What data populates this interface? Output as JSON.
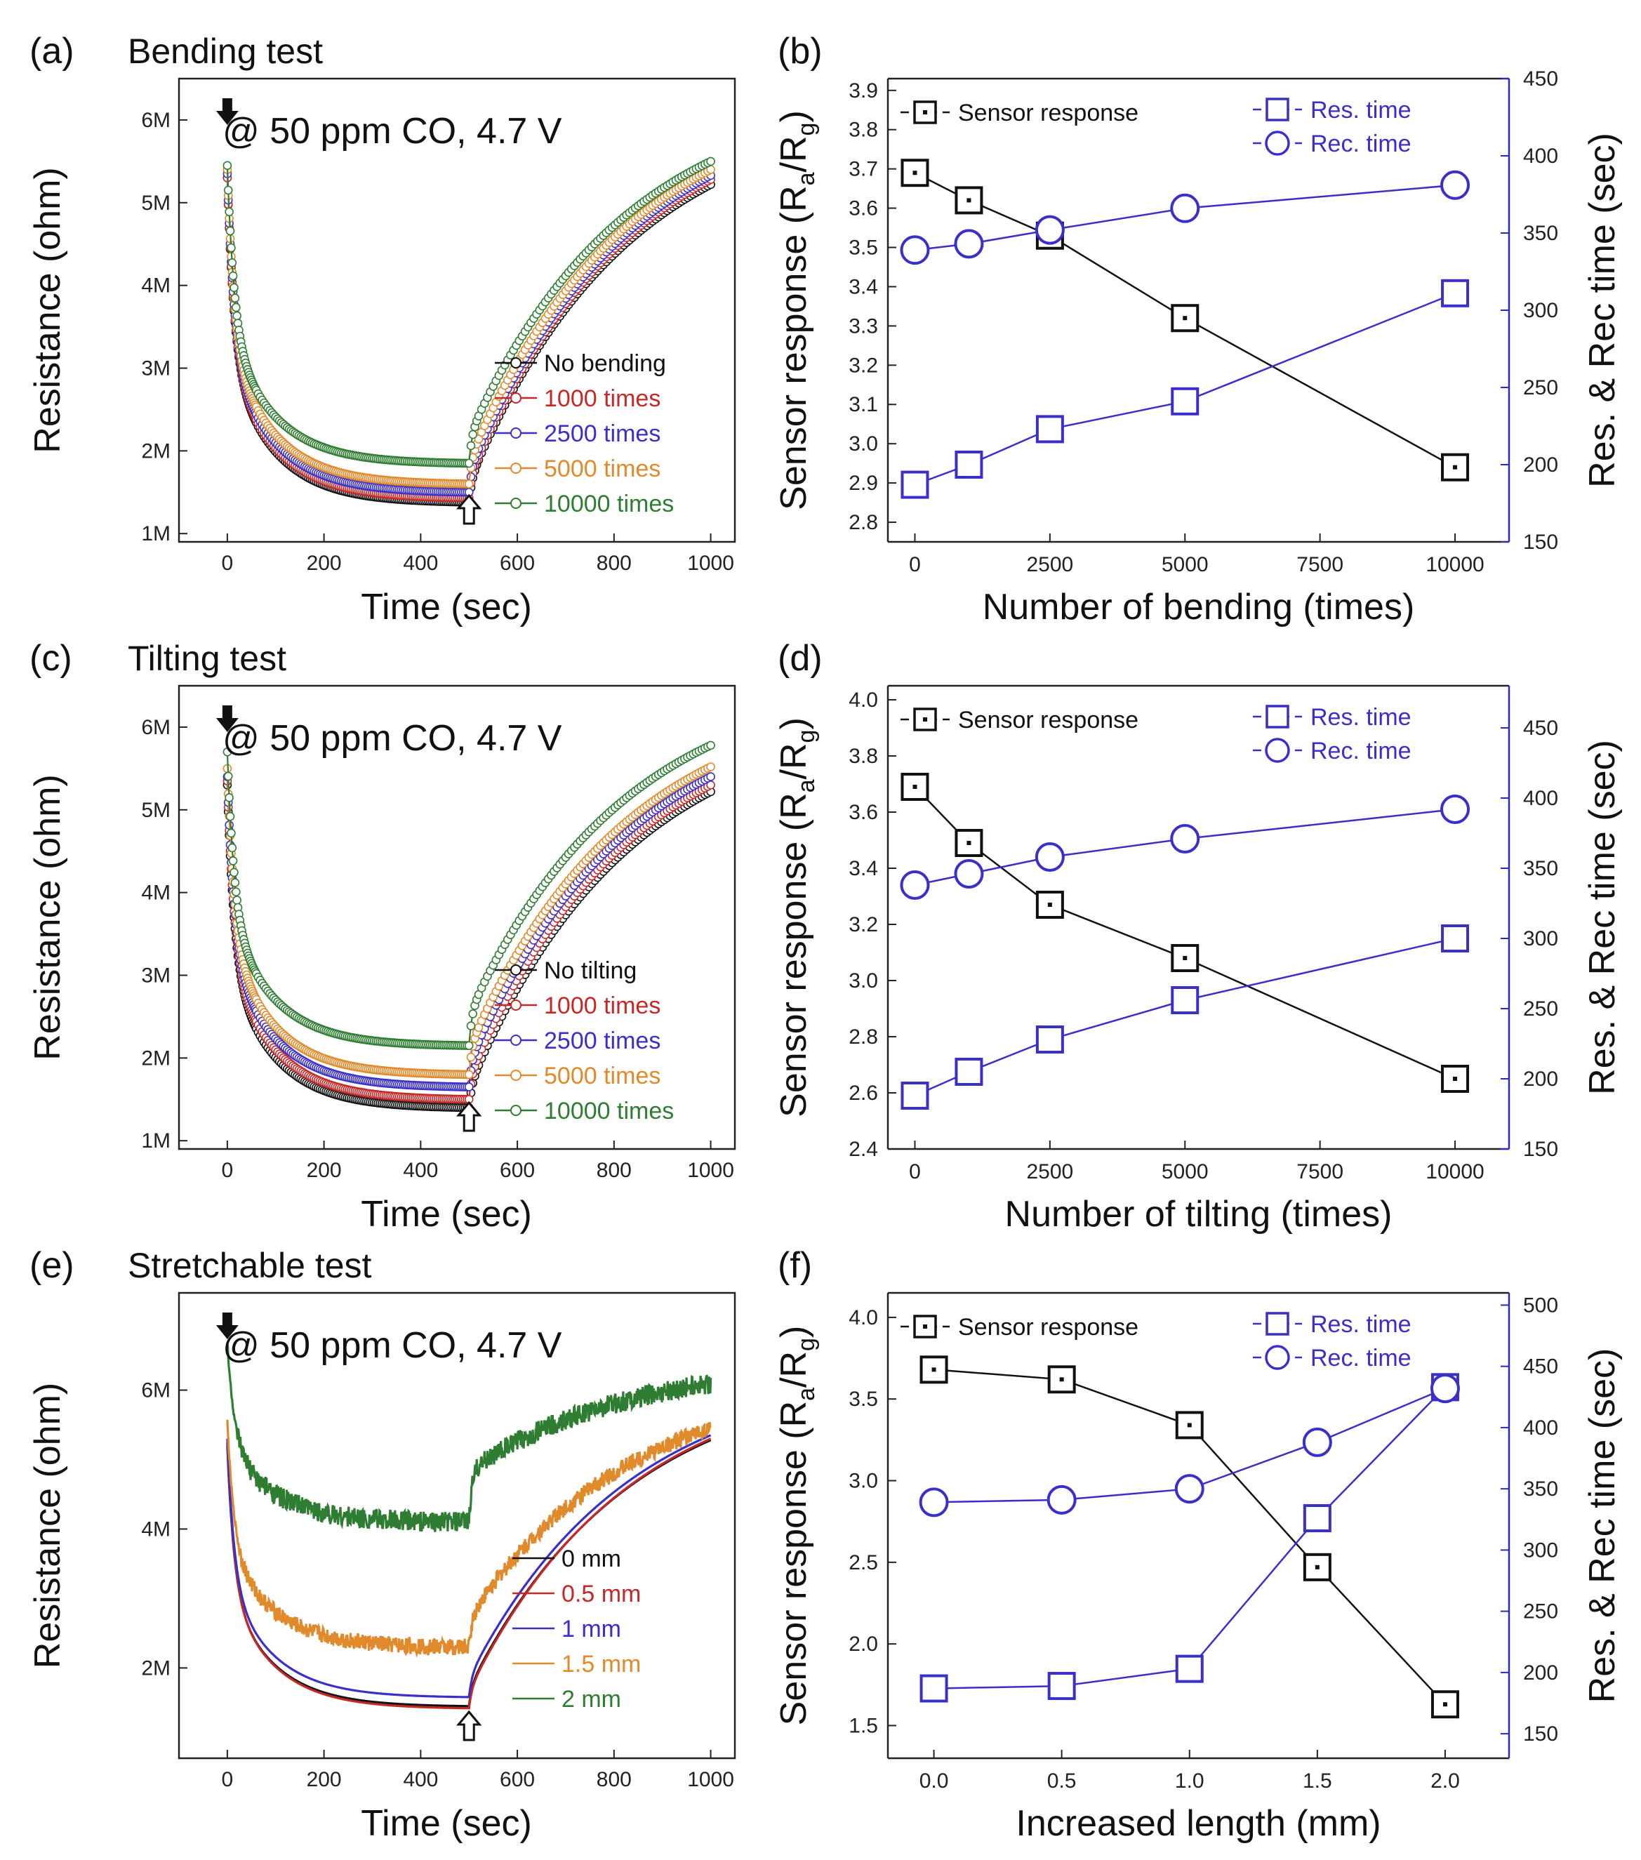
{
  "figure": {
    "colors": {
      "black": "#111111",
      "red": "#c62828",
      "blue": "#3a2fc9",
      "orange": "#e08a2c",
      "green": "#2e7d32",
      "axis_right": "#2f28c8"
    }
  },
  "chart_data": [
    {
      "id": "a",
      "type": "line",
      "letter": "(a)",
      "title": "Bending test",
      "annotation": "@ 50 ppm CO, 4.7 V",
      "xlabel": "Time (sec)",
      "ylabel": "Resistance (ohm)",
      "xlim": [
        -100,
        1050
      ],
      "ylim": [
        900000,
        6500000
      ],
      "xticks": [
        0,
        200,
        400,
        600,
        800,
        1000
      ],
      "yticks": [
        1000000,
        2000000,
        3000000,
        4000000,
        5000000,
        6000000
      ],
      "ytick_labels": [
        "1M",
        "2M",
        "3M",
        "4M",
        "5M",
        "6M"
      ],
      "marker": "circle",
      "gas_in_s": 0,
      "gas_out_s": 500,
      "series": [
        {
          "name": "No bending",
          "color": "#111111",
          "r0": 5300000,
          "r_min": 1380000,
          "r_end": 5220000
        },
        {
          "name": "1000 times",
          "color": "#c62828",
          "r0": 5300000,
          "r_min": 1430000,
          "r_end": 5280000
        },
        {
          "name": "2500 times",
          "color": "#3a2fc9",
          "r0": 5350000,
          "r_min": 1500000,
          "r_end": 5330000
        },
        {
          "name": "5000 times",
          "color": "#e08a2c",
          "r0": 5400000,
          "r_min": 1600000,
          "r_end": 5400000
        },
        {
          "name": "10000 times",
          "color": "#2e7d32",
          "r0": 5450000,
          "r_min": 1850000,
          "r_end": 5500000
        }
      ]
    },
    {
      "id": "b",
      "type": "line",
      "letter": "(b)",
      "xlabel": "Number of bending (times)",
      "ylabel": "Sensor response (R_a/R_g)",
      "ylabel_right": "Res. & Rec time (sec)",
      "xlim": [
        -500,
        11000
      ],
      "ylim": [
        2.75,
        3.93
      ],
      "y2lim": [
        150,
        450
      ],
      "xticks": [
        0,
        2500,
        5000,
        7500,
        10000
      ],
      "yticks": [
        2.8,
        2.9,
        3.0,
        3.1,
        3.2,
        3.3,
        3.4,
        3.5,
        3.6,
        3.7,
        3.8,
        3.9
      ],
      "y2ticks": [
        150,
        200,
        250,
        300,
        350,
        400,
        450
      ],
      "x": [
        0,
        1000,
        2500,
        5000,
        10000
      ],
      "series": [
        {
          "name": "Sensor response",
          "axis": "left",
          "marker": "dot-square",
          "color": "#111111",
          "values": [
            3.69,
            3.62,
            3.53,
            3.32,
            2.94
          ]
        },
        {
          "name": "Res. time",
          "axis": "right",
          "marker": "square",
          "color": "#3a2fc9",
          "values": [
            187,
            200,
            223,
            241,
            311
          ]
        },
        {
          "name": "Rec. time",
          "axis": "right",
          "marker": "circle",
          "color": "#3a2fc9",
          "values": [
            339,
            343,
            352,
            366,
            381
          ]
        }
      ]
    },
    {
      "id": "c",
      "type": "line",
      "letter": "(c)",
      "title": "Tilting test",
      "annotation": "@ 50 ppm CO, 4.7 V",
      "xlabel": "Time (sec)",
      "ylabel": "Resistance (ohm)",
      "xlim": [
        -100,
        1050
      ],
      "ylim": [
        900000,
        6500000
      ],
      "xticks": [
        0,
        200,
        400,
        600,
        800,
        1000
      ],
      "yticks": [
        1000000,
        2000000,
        3000000,
        4000000,
        5000000,
        6000000
      ],
      "ytick_labels": [
        "1M",
        "2M",
        "3M",
        "4M",
        "5M",
        "6M"
      ],
      "marker": "circle",
      "gas_in_s": 0,
      "gas_out_s": 500,
      "series": [
        {
          "name": "No tilting",
          "color": "#111111",
          "r0": 5300000,
          "r_min": 1400000,
          "r_end": 5220000
        },
        {
          "name": "1000 times",
          "color": "#c62828",
          "r0": 5350000,
          "r_min": 1500000,
          "r_end": 5300000
        },
        {
          "name": "2500 times",
          "color": "#3a2fc9",
          "r0": 5400000,
          "r_min": 1650000,
          "r_end": 5400000
        },
        {
          "name": "5000 times",
          "color": "#e08a2c",
          "r0": 5500000,
          "r_min": 1800000,
          "r_end": 5520000
        },
        {
          "name": "10000 times",
          "color": "#2e7d32",
          "r0": 5700000,
          "r_min": 2150000,
          "r_end": 5780000
        }
      ]
    },
    {
      "id": "d",
      "type": "line",
      "letter": "(d)",
      "xlabel": "Number of tilting (times)",
      "ylabel": "Sensor response (R_a/R_g)",
      "ylabel_right": "Res. & Rec time (sec)",
      "xlim": [
        -500,
        11000
      ],
      "ylim": [
        2.4,
        4.05
      ],
      "y2lim": [
        150,
        480
      ],
      "xticks": [
        0,
        2500,
        5000,
        7500,
        10000
      ],
      "yticks": [
        2.4,
        2.6,
        2.8,
        3.0,
        3.2,
        3.4,
        3.6,
        3.8,
        4.0
      ],
      "y2ticks": [
        150,
        200,
        250,
        300,
        350,
        400,
        450
      ],
      "x": [
        0,
        1000,
        2500,
        5000,
        10000
      ],
      "series": [
        {
          "name": "Sensor response",
          "axis": "left",
          "marker": "dot-square",
          "color": "#111111",
          "values": [
            3.69,
            3.49,
            3.27,
            3.08,
            2.65
          ]
        },
        {
          "name": "Res. time",
          "axis": "right",
          "marker": "square",
          "color": "#3a2fc9",
          "values": [
            188,
            205,
            228,
            256,
            300
          ]
        },
        {
          "name": "Rec. time",
          "axis": "right",
          "marker": "circle",
          "color": "#3a2fc9",
          "values": [
            338,
            346,
            358,
            371,
            392
          ]
        }
      ]
    },
    {
      "id": "e",
      "type": "line",
      "letter": "(e)",
      "title": "Stretchable test",
      "annotation": "@ 50 ppm CO, 4.7 V",
      "xlabel": "Time (sec)",
      "ylabel": "Resistance (ohm)",
      "xlim": [
        -100,
        1050
      ],
      "ylim": [
        700000,
        7400000
      ],
      "xticks": [
        0,
        200,
        400,
        600,
        800,
        1000
      ],
      "yticks": [
        2000000,
        4000000,
        6000000
      ],
      "ytick_labels": [
        "2M",
        "4M",
        "6M"
      ],
      "marker": "none",
      "gas_in_s": 0,
      "gas_out_s": 500,
      "series": [
        {
          "name": "0 mm",
          "color": "#111111",
          "r0": 5200000,
          "r_min": 1450000,
          "r_end": 5280000,
          "noise": 0
        },
        {
          "name": "0.5 mm",
          "color": "#c62828",
          "r0": 5250000,
          "r_min": 1420000,
          "r_end": 5300000,
          "noise": 0
        },
        {
          "name": "1 mm",
          "color": "#3a2fc9",
          "r0": 5300000,
          "r_min": 1580000,
          "r_end": 5350000,
          "noise": 0
        },
        {
          "name": "1.5 mm",
          "color": "#e08a2c",
          "r0": 5550000,
          "r_min": 2300000,
          "r_end": 5450000,
          "noise": 120000
        },
        {
          "name": "2 mm",
          "color": "#2e7d32",
          "r0": 6700000,
          "r_min": 4100000,
          "r_end": 6100000,
          "noise": 150000
        }
      ]
    },
    {
      "id": "f",
      "type": "line",
      "letter": "(f)",
      "xlabel": "Increased length (mm)",
      "ylabel": "Sensor response (R_a/R_g)",
      "ylabel_right": "Res. & Rec time (sec)",
      "xlim": [
        -0.18,
        2.25
      ],
      "ylim": [
        1.3,
        4.15
      ],
      "y2lim": [
        130,
        510
      ],
      "xticks": [
        0.0,
        0.5,
        1.0,
        1.5,
        2.0
      ],
      "yticks": [
        1.5,
        2.0,
        2.5,
        3.0,
        3.5,
        4.0
      ],
      "y2ticks": [
        150,
        200,
        250,
        300,
        350,
        400,
        450,
        500
      ],
      "x": [
        0.0,
        0.5,
        1.0,
        1.5,
        2.0
      ],
      "series": [
        {
          "name": "Sensor response",
          "axis": "left",
          "marker": "dot-square",
          "color": "#111111",
          "values": [
            3.68,
            3.62,
            3.34,
            2.47,
            1.63
          ]
        },
        {
          "name": "Res. time",
          "axis": "right",
          "marker": "square",
          "color": "#3a2fc9",
          "values": [
            187,
            189,
            203,
            326,
            433
          ]
        },
        {
          "name": "Rec. time",
          "axis": "right",
          "marker": "circle",
          "color": "#3a2fc9",
          "values": [
            339,
            341,
            350,
            388,
            432
          ]
        }
      ]
    }
  ]
}
